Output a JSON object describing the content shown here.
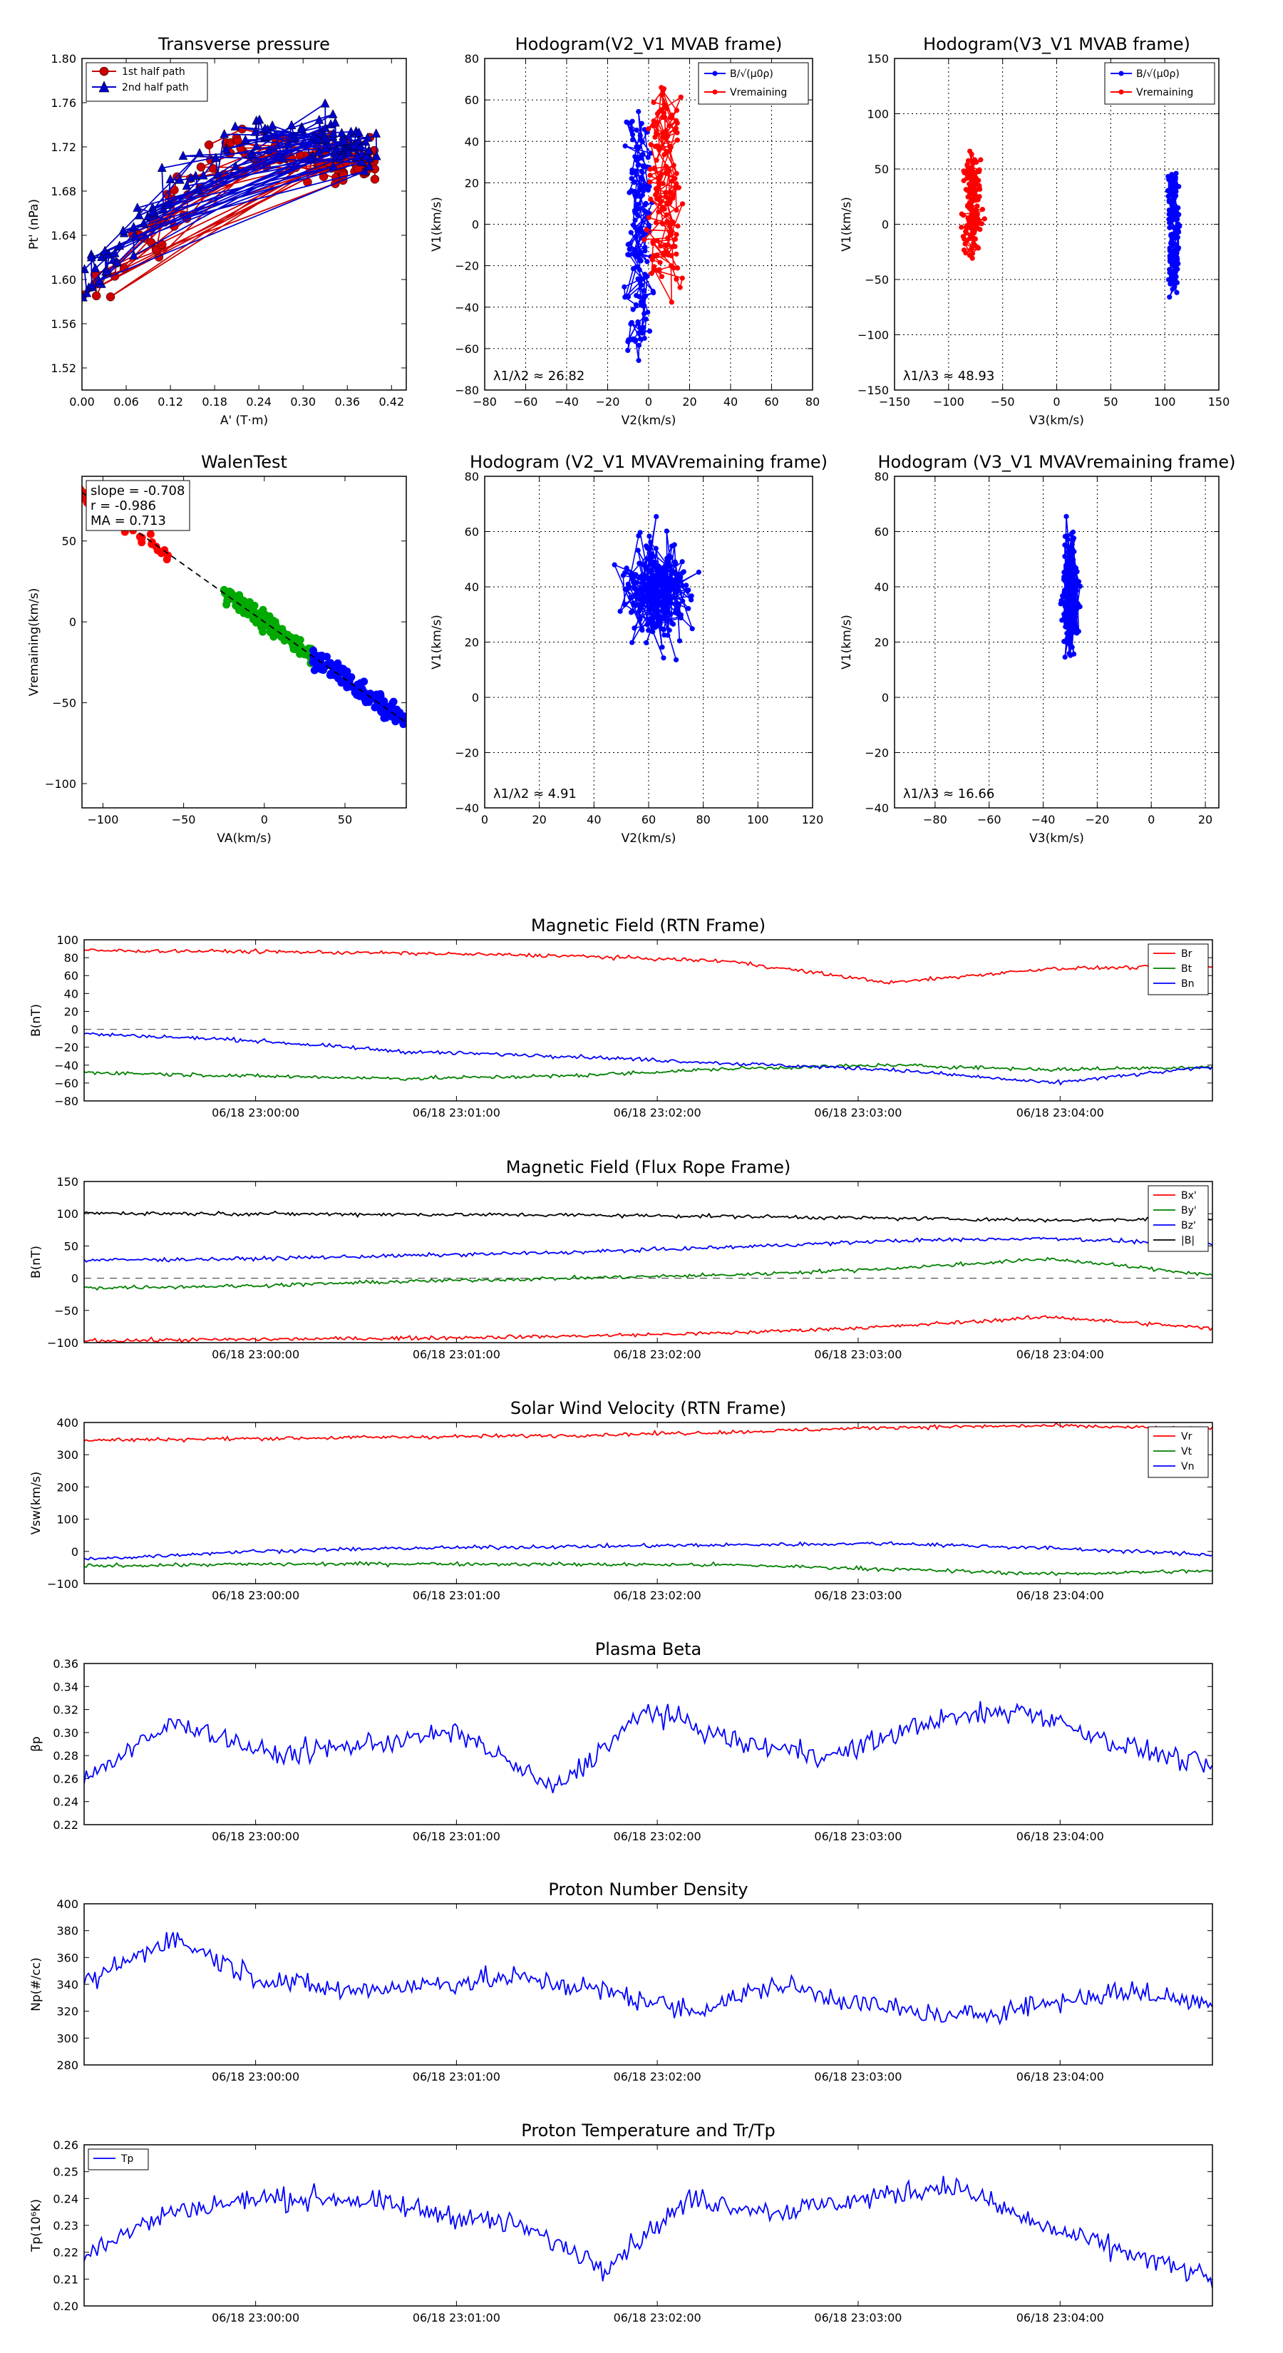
{
  "chart_data": [
    {
      "id": "pt",
      "type": "scatter",
      "title": "Transverse pressure",
      "xlabel": "A' (T·m)",
      "ylabel": "Pt' (nPa)",
      "xlim": [
        0.0,
        0.44
      ],
      "ylim": [
        1.5,
        1.8
      ],
      "xticks": [
        0.0,
        0.06,
        0.12,
        0.18,
        0.24,
        0.3,
        0.36,
        0.42
      ],
      "yticks": [
        1.52,
        1.56,
        1.6,
        1.64,
        1.68,
        1.72,
        1.76,
        1.8
      ],
      "tick_decimals": [
        2,
        2
      ],
      "grid": false,
      "legend": "top-left",
      "series": [
        {
          "name": "1st half path",
          "color": "#cc0000",
          "marker": "circle"
        },
        {
          "name": "2nd half path",
          "color": "#0000cc",
          "marker": "triangle"
        }
      ]
    },
    {
      "id": "h12",
      "type": "scatter",
      "title": "Hodogram(V2_V1 MVAB frame)",
      "xlabel": "V2(km/s)",
      "ylabel": "V1(km/s)",
      "xlim": [
        -80,
        80
      ],
      "ylim": [
        -80,
        80
      ],
      "xticks": [
        -80,
        -60,
        -40,
        -20,
        0,
        20,
        40,
        60,
        80
      ],
      "yticks": [
        -80,
        -60,
        -40,
        -20,
        0,
        20,
        40,
        60,
        80
      ],
      "grid": true,
      "legend": "top-right",
      "annotation": "λ1/λ2 ≈ 26.82",
      "series": [
        {
          "name": "B/√(μ0ρ)",
          "color": "#0000ff"
        },
        {
          "name": "Vremaining",
          "color": "#ff0000"
        }
      ]
    },
    {
      "id": "h13",
      "type": "scatter",
      "title": "Hodogram(V3_V1 MVAB frame)",
      "xlabel": "V3(km/s)",
      "ylabel": "V1(km/s)",
      "xlim": [
        -150,
        150
      ],
      "ylim": [
        -150,
        150
      ],
      "xticks": [
        -150,
        -100,
        -50,
        0,
        50,
        100,
        150
      ],
      "yticks": [
        -150,
        -100,
        -50,
        0,
        50,
        100,
        150
      ],
      "grid": true,
      "legend": "top-right",
      "annotation": "λ1/λ3 ≈ 48.93",
      "series": [
        {
          "name": "B/√(μ0ρ)",
          "color": "#0000ff"
        },
        {
          "name": "Vremaining",
          "color": "#ff0000"
        }
      ]
    },
    {
      "id": "walen",
      "type": "scatter",
      "title": "WalenTest",
      "xlabel": "VA(km/s)",
      "ylabel": "Vremaining(km/s)",
      "xlim": [
        -113,
        88
      ],
      "ylim": [
        -115,
        90
      ],
      "xticks": [
        -100,
        -50,
        0,
        50
      ],
      "yticks": [
        -100,
        -50,
        0,
        50
      ],
      "grid": false,
      "stats": [
        "slope = -0.708",
        "r = -0.986",
        "MA = 0.713"
      ],
      "fit_slope": -0.708,
      "groups": [
        {
          "color": "#ff0000",
          "x_range": [
            -115,
            -58
          ]
        },
        {
          "color": "#00aa00",
          "x_range": [
            -25,
            30
          ]
        },
        {
          "color": "#0000ff",
          "x_range": [
            30,
            88
          ]
        }
      ]
    },
    {
      "id": "h12r",
      "type": "line",
      "title": "Hodogram (V2_V1 MVAVremaining frame)",
      "xlabel": "V2(km/s)",
      "ylabel": "V1(km/s)",
      "xlim": [
        0,
        120
      ],
      "ylim": [
        -40,
        80
      ],
      "xticks": [
        0,
        20,
        40,
        60,
        80,
        100,
        120
      ],
      "yticks": [
        -40,
        -20,
        0,
        20,
        40,
        60,
        80
      ],
      "grid": true,
      "annotation": "λ1/λ2 ≈ 4.91",
      "center": [
        64,
        38
      ],
      "spread": [
        13,
        20
      ]
    },
    {
      "id": "h13r",
      "type": "line",
      "title": "Hodogram (V3_V1 MVAVremaining frame)",
      "xlabel": "V3(km/s)",
      "ylabel": "V1(km/s)",
      "xlim": [
        -95,
        25
      ],
      "ylim": [
        -40,
        80
      ],
      "xticks": [
        -80,
        -60,
        -40,
        -20,
        0,
        20
      ],
      "yticks": [
        -40,
        -20,
        0,
        20,
        40,
        60,
        80
      ],
      "grid": true,
      "annotation": "λ1/λ3 ≈ 16.66",
      "center": [
        -30,
        38
      ],
      "spread": [
        3,
        20
      ]
    },
    {
      "id": "mag_rtn",
      "type": "line",
      "title": "Magnetic Field (RTN Frame)",
      "ylabel": "B(nT)",
      "ylim": [
        -80,
        100
      ],
      "yticks": [
        -80,
        -60,
        -40,
        -20,
        0,
        20,
        40,
        60,
        80,
        100
      ],
      "xticks_label": [
        "06/18 23:00:00",
        "06/18 23:01:00",
        "06/18 23:02:00",
        "06/18 23:03:00",
        "06/18 23:04:00"
      ],
      "zero_line": true,
      "legend": "top-right",
      "series": [
        {
          "name": "Br",
          "color": "#ff0000",
          "levels": [
            88,
            87,
            85,
            82,
            76,
            52,
            68,
            70
          ]
        },
        {
          "name": "Bt",
          "color": "#008000",
          "levels": [
            -48,
            -52,
            -55,
            -52,
            -44,
            -40,
            -45,
            -42
          ]
        },
        {
          "name": "Bn",
          "color": "#0000ff",
          "levels": [
            -5,
            -12,
            -25,
            -30,
            -38,
            -45,
            -60,
            -42
          ]
        }
      ]
    },
    {
      "id": "mag_fr",
      "type": "line",
      "title": "Magnetic Field (Flux Rope Frame)",
      "ylabel": "B(nT)",
      "ylim": [
        -100,
        150
      ],
      "yticks": [
        -100,
        -50,
        0,
        50,
        100,
        150
      ],
      "xticks_label": [
        "06/18 23:00:00",
        "06/18 23:01:00",
        "06/18 23:02:00",
        "06/18 23:03:00",
        "06/18 23:04:00"
      ],
      "zero_line": true,
      "legend": "top-right",
      "series": [
        {
          "name": "Bx'",
          "color": "#ff0000",
          "levels": [
            -97,
            -95,
            -93,
            -90,
            -85,
            -75,
            -60,
            -78
          ]
        },
        {
          "name": "By'",
          "color": "#008000",
          "levels": [
            -15,
            -12,
            -5,
            0,
            5,
            15,
            30,
            5
          ]
        },
        {
          "name": "Bz'",
          "color": "#0000ff",
          "levels": [
            28,
            30,
            35,
            40,
            48,
            58,
            62,
            52
          ]
        },
        {
          "name": "|B|",
          "color": "#000000",
          "levels": [
            101,
            100,
            99,
            98,
            96,
            93,
            90,
            92
          ]
        }
      ]
    },
    {
      "id": "vsw",
      "type": "line",
      "title": "Solar Wind Velocity (RTN Frame)",
      "ylabel": "Vsw(km/s)",
      "ylim": [
        -100,
        400
      ],
      "yticks": [
        -100,
        0,
        100,
        200,
        300,
        400
      ],
      "xticks_label": [
        "06/18 23:00:00",
        "06/18 23:01:00",
        "06/18 23:02:00",
        "06/18 23:03:00",
        "06/18 23:04:00"
      ],
      "legend": "top-right",
      "series": [
        {
          "name": "Vr",
          "color": "#ff0000",
          "levels": [
            345,
            350,
            355,
            360,
            370,
            385,
            390,
            380
          ]
        },
        {
          "name": "Vt",
          "color": "#008000",
          "levels": [
            -45,
            -40,
            -38,
            -40,
            -42,
            -55,
            -70,
            -60
          ]
        },
        {
          "name": "Vn",
          "color": "#0000ff",
          "levels": [
            -25,
            0,
            10,
            15,
            20,
            25,
            10,
            -10
          ]
        }
      ]
    },
    {
      "id": "beta",
      "type": "line",
      "title": "Plasma Beta",
      "ylabel": "βp",
      "ylim": [
        0.22,
        0.36
      ],
      "yticks": [
        0.22,
        0.24,
        0.26,
        0.28,
        0.3,
        0.32,
        0.34,
        0.36
      ],
      "tick_decimals": 2,
      "xticks_label": [
        "06/18 23:00:00",
        "06/18 23:01:00",
        "06/18 23:02:00",
        "06/18 23:03:00",
        "06/18 23:04:00"
      ],
      "series": [
        {
          "name": "beta",
          "color": "#0000ff",
          "levels": [
            0.26,
            0.31,
            0.28,
            0.29,
            0.3,
            0.25,
            0.32,
            0.29,
            0.28,
            0.31,
            0.32,
            0.29,
            0.27
          ]
        }
      ]
    },
    {
      "id": "np",
      "type": "line",
      "title": "Proton Number Density",
      "ylabel": "Np(#/cc)",
      "ylim": [
        280,
        400
      ],
      "yticks": [
        280,
        300,
        320,
        340,
        360,
        380,
        400
      ],
      "xticks_label": [
        "06/18 23:00:00",
        "06/18 23:01:00",
        "06/18 23:02:00",
        "06/18 23:03:00",
        "06/18 23:04:00"
      ],
      "series": [
        {
          "name": "Np",
          "color": "#0000ff",
          "levels": [
            340,
            375,
            345,
            335,
            340,
            345,
            335,
            320,
            340,
            325,
            315,
            325,
            335,
            325
          ]
        }
      ]
    },
    {
      "id": "tp",
      "type": "line",
      "title": "Proton Temperature and Tr/Tp",
      "ylabel": "Tp(10⁶K)",
      "ylim": [
        0.2,
        0.26
      ],
      "yticks": [
        0.2,
        0.21,
        0.22,
        0.23,
        0.24,
        0.25,
        0.26
      ],
      "tick_decimals": 2,
      "xticks_label": [
        "06/18 23:00:00",
        "06/18 23:01:00",
        "06/18 23:02:00",
        "06/18 23:03:00",
        "06/18 23:04:00"
      ],
      "legend": "top-left",
      "series": [
        {
          "name": "Tp",
          "color": "#0000ff",
          "levels": [
            0.22,
            0.235,
            0.24,
            0.24,
            0.235,
            0.23,
            0.215,
            0.24,
            0.235,
            0.24,
            0.245,
            0.23,
            0.22,
            0.21
          ]
        }
      ]
    }
  ]
}
